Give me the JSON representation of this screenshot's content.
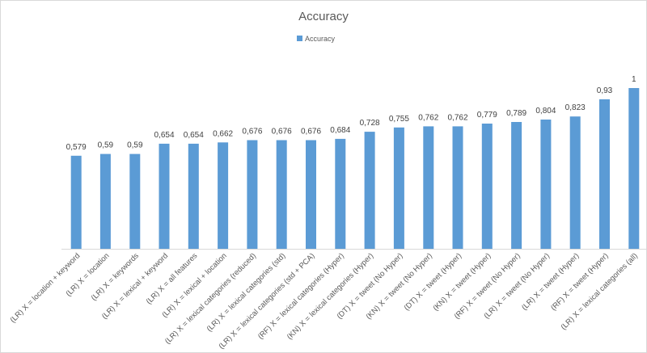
{
  "chart_data": {
    "type": "bar",
    "title": "Accuracy",
    "legend": {
      "position": "top",
      "entries": [
        "Accuracy"
      ]
    },
    "grid": false,
    "xlabel": "",
    "ylabel": "",
    "ylim": [
      0,
      1
    ],
    "colors": {
      "bar": "#5b9bd5",
      "axis": "#d9d9d9"
    },
    "categories": [
      "(LR) X = location + keyword",
      "(LR) X = location",
      "(LR) X = keywords",
      "(LR) X = lexical + keyword",
      "(LR) X = all features",
      "(LR) X = lexical + location",
      "(LR) X = lexical categories (reduced)",
      "(LR) X = lexical categories (std)",
      "(LR) X = lexical categories (std + PCA)",
      "(RF) X = lexical categories (Hyper)",
      "(KN) X = lexical categories (Hyper)",
      "(DT) X = tweet (No Hyper)",
      "(KN) X = tweet (No Hyper)",
      "(DT) X = tweet (Hyper)",
      "(KN) X = tweet (Hyper)",
      "(RF) X = tweet (No Hyper)",
      "(LR) X = tweet (No Hyper)",
      "(LR) X = tweet (Hyper)",
      "(RF) X = tweet (Hyper)",
      "(LR) X = lexical categories (all)"
    ],
    "series": [
      {
        "name": "Accuracy",
        "values": [
          0.579,
          0.59,
          0.59,
          0.654,
          0.654,
          0.662,
          0.676,
          0.676,
          0.676,
          0.684,
          0.728,
          0.755,
          0.762,
          0.762,
          0.779,
          0.789,
          0.804,
          0.823,
          0.93,
          1
        ],
        "labels": [
          "0,579",
          "0,59",
          "0,59",
          "0,654",
          "0,654",
          "0,662",
          "0,676",
          "0,676",
          "0,676",
          "0,684",
          "0,728",
          "0,755",
          "0,762",
          "0,762",
          "0,779",
          "0,789",
          "0,804",
          "0,823",
          "0,93",
          "1"
        ]
      }
    ]
  }
}
